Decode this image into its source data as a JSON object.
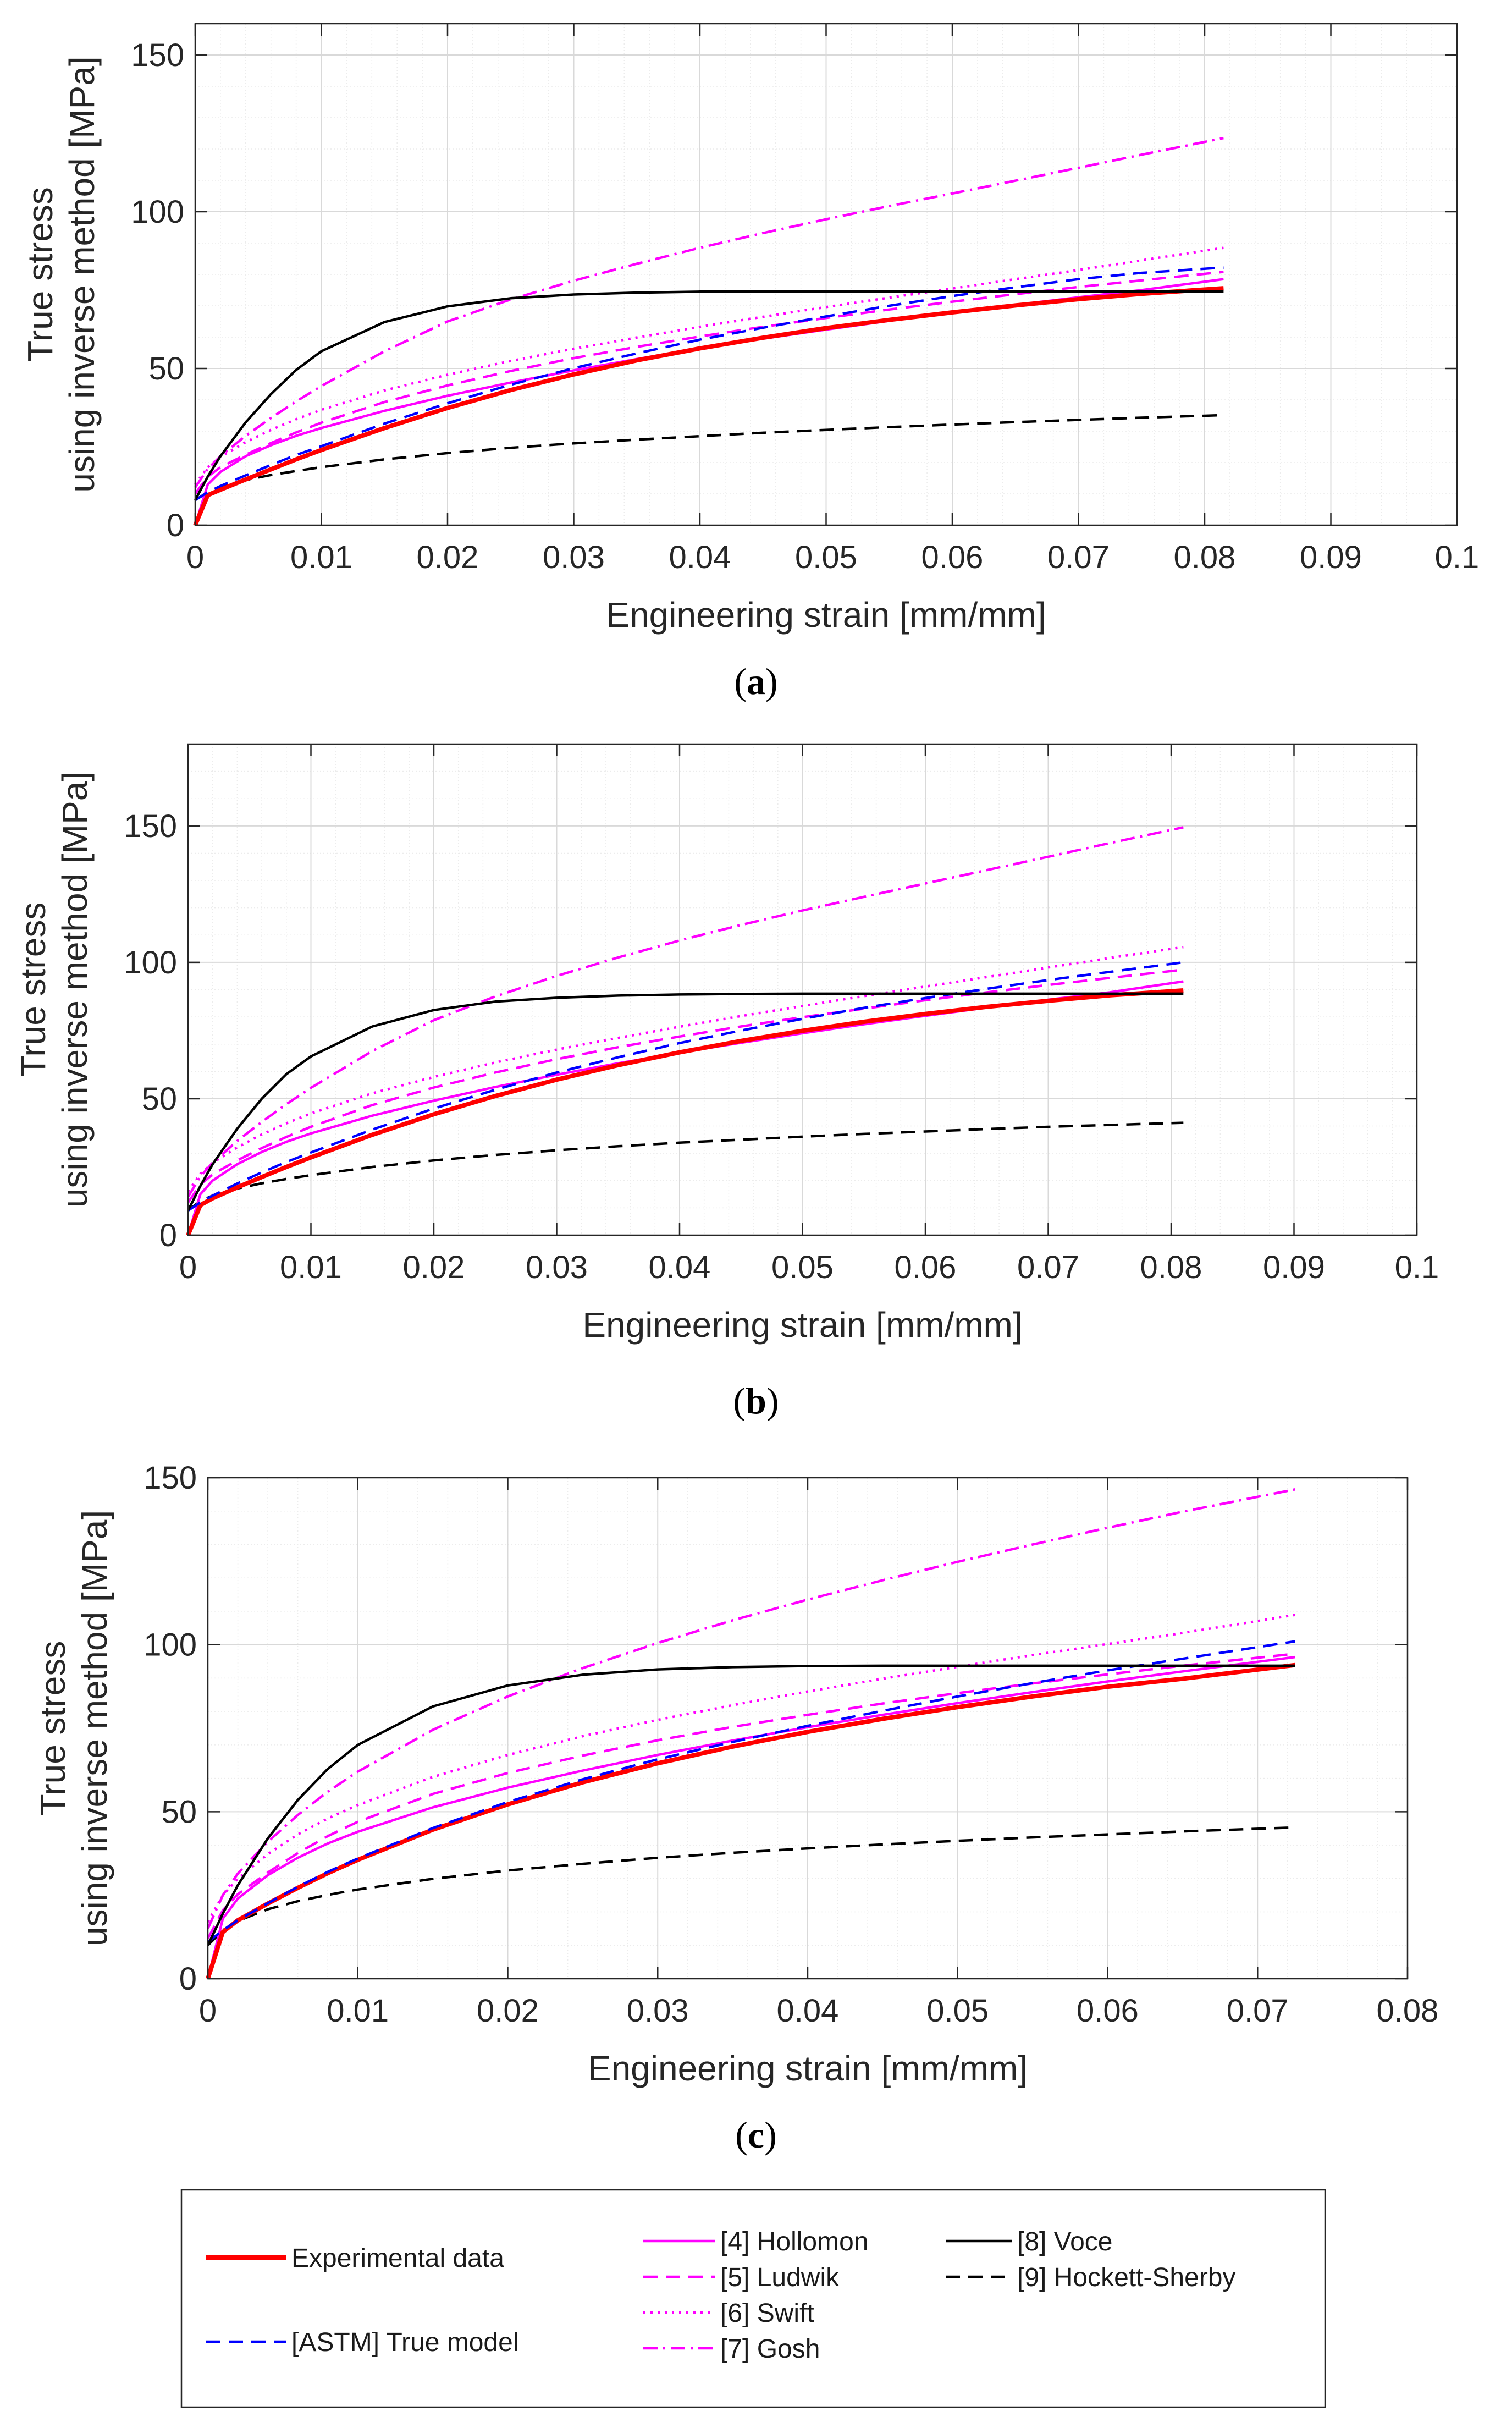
{
  "style": {
    "magenta": "#FF00FF",
    "red": "#FF0000",
    "blue": "#0000FF",
    "black": "#000000",
    "grid": "#d9d9d9",
    "minor_grid": "#ececec",
    "axis": "#262626"
  },
  "legend": {
    "items": [
      {
        "label": "Experimental data",
        "color": "#FF0000",
        "dash": "solid-thick"
      },
      {
        "label": "[ASTM] True model",
        "color": "#0000FF",
        "dash": "dashed"
      },
      {
        "label": "[4] Hollomon",
        "color": "#FF00FF",
        "dash": "solid"
      },
      {
        "label": "[5] Ludwik",
        "color": "#FF00FF",
        "dash": "dashed"
      },
      {
        "label": "[6] Swift",
        "color": "#FF00FF",
        "dash": "dotted"
      },
      {
        "label": "[7] Gosh",
        "color": "#FF00FF",
        "dash": "dashdot"
      },
      {
        "label": "[8] Voce",
        "color": "#000000",
        "dash": "solid"
      },
      {
        "label": "[9] Hockett-Sherby",
        "color": "#000000",
        "dash": "dashed"
      }
    ]
  },
  "chart_data": [
    {
      "type": "line",
      "caption": "a",
      "xlabel": "Engineering strain [mm/mm]",
      "ylabel_lines": [
        "True stress",
        "using inverse method [MPa]"
      ],
      "xlim": [
        0,
        0.1
      ],
      "ylim": [
        0,
        160
      ],
      "xticks": [
        0,
        0.01,
        0.02,
        0.03,
        0.04,
        0.05,
        0.06,
        0.07,
        0.08,
        0.09,
        0.1
      ],
      "xtick_labels": [
        "0",
        "0.01",
        "0.02",
        "0.03",
        "0.04",
        "0.05",
        "0.06",
        "0.07",
        "0.08",
        "0.09",
        "0.1"
      ],
      "yticks": [
        0,
        50,
        100,
        150
      ],
      "ytick_labels": [
        "0",
        "50",
        "100",
        "150"
      ],
      "x": [
        0,
        0.001,
        0.002,
        0.004,
        0.006,
        0.008,
        0.01,
        0.015,
        0.02,
        0.025,
        0.03,
        0.035,
        0.04,
        0.045,
        0.05,
        0.055,
        0.06,
        0.065,
        0.07,
        0.075,
        0.0815
      ],
      "series": [
        {
          "name": "Experimental data",
          "values": [
            0,
            9.6,
            11.3,
            14.6,
            17.8,
            21.0,
            24.0,
            31.0,
            37.4,
            43.1,
            48.1,
            52.6,
            56.4,
            59.8,
            62.9,
            65.5,
            67.9,
            70.1,
            72.1,
            73.8,
            75.6
          ]
        },
        {
          "name": "[ASTM] True model",
          "values": [
            8.0,
            10.5,
            12.5,
            15.9,
            19.2,
            22.4,
            25.2,
            32.4,
            38.9,
            44.8,
            50.1,
            54.8,
            59.2,
            63.0,
            66.6,
            70.0,
            73.1,
            75.9,
            78.5,
            80.5,
            82.2
          ]
        },
        {
          "name": "[4] Hollomon",
          "values": [
            0,
            13.0,
            17.0,
            22.0,
            25.5,
            28.5,
            31.0,
            36.5,
            41.3,
            45.5,
            49.4,
            53.0,
            56.4,
            59.5,
            62.4,
            65.2,
            67.8,
            70.3,
            72.7,
            75.0,
            78.5
          ]
        },
        {
          "name": "[5] Ludwik",
          "values": [
            10.0,
            15.5,
            18.5,
            22.5,
            26.2,
            29.6,
            32.7,
            39.3,
            44.6,
            49.2,
            53.3,
            56.9,
            60.2,
            63.3,
            66.1,
            68.8,
            71.3,
            73.7,
            76.0,
            78.1,
            80.8
          ]
        },
        {
          "name": "[6] Swift",
          "values": [
            13.0,
            18.5,
            21.8,
            26.5,
            30.4,
            33.8,
            36.8,
            43.0,
            48.0,
            52.4,
            56.3,
            59.9,
            63.3,
            66.5,
            69.6,
            72.6,
            75.5,
            78.5,
            81.4,
            84.5,
            88.5
          ]
        },
        {
          "name": "[7] Gosh",
          "values": [
            12.0,
            18.0,
            22.0,
            28.5,
            34.2,
            39.5,
            44.4,
            55.5,
            65.0,
            72.0,
            78.0,
            83.4,
            88.5,
            93.2,
            97.6,
            101.8,
            105.8,
            109.9,
            114.0,
            118.2,
            123.5
          ]
        },
        {
          "name": "[8] Voce",
          "values": [
            8.0,
            15.5,
            22.0,
            32.8,
            41.8,
            49.5,
            55.5,
            64.8,
            69.8,
            72.4,
            73.6,
            74.2,
            74.5,
            74.6,
            74.6,
            74.6,
            74.6,
            74.6,
            74.6,
            74.6,
            74.6
          ]
        },
        {
          "name": "[9] Hockett-Sherby",
          "values": [
            8.0,
            10.5,
            12.2,
            14.4,
            16.0,
            17.3,
            18.5,
            21.0,
            23.0,
            24.7,
            26.1,
            27.3,
            28.4,
            29.5,
            30.4,
            31.3,
            32.1,
            32.9,
            33.6,
            34.3,
            35.1
          ]
        }
      ]
    },
    {
      "type": "line",
      "caption": "b",
      "xlabel": "Engineering strain [mm/mm]",
      "ylabel_lines": [
        "True stress",
        "using inverse method [MPa]"
      ],
      "xlim": [
        0,
        0.1
      ],
      "ylim": [
        0,
        180
      ],
      "xticks": [
        0,
        0.01,
        0.02,
        0.03,
        0.04,
        0.05,
        0.06,
        0.07,
        0.08,
        0.09,
        0.1
      ],
      "xtick_labels": [
        "0",
        "0.01",
        "0.02",
        "0.03",
        "0.04",
        "0.05",
        "0.06",
        "0.07",
        "0.08",
        "0.09",
        "0.1"
      ],
      "yticks": [
        0,
        50,
        100,
        150
      ],
      "ytick_labels": [
        "0",
        "50",
        "100",
        "150"
      ],
      "x": [
        0,
        0.001,
        0.002,
        0.004,
        0.006,
        0.008,
        0.01,
        0.015,
        0.02,
        0.025,
        0.03,
        0.035,
        0.04,
        0.045,
        0.05,
        0.055,
        0.06,
        0.065,
        0.07,
        0.075,
        0.081
      ],
      "series": [
        {
          "name": "Experimental data",
          "values": [
            0,
            11.0,
            13.5,
            17.5,
            21.3,
            25.0,
            28.5,
            36.8,
            44.3,
            51.0,
            57.0,
            62.3,
            67.0,
            71.2,
            74.9,
            78.2,
            81.1,
            83.7,
            85.9,
            87.9,
            89.7
          ]
        },
        {
          "name": "[ASTM] True model",
          "values": [
            9.0,
            12.0,
            14.5,
            18.9,
            23.0,
            26.8,
            30.3,
            38.7,
            46.4,
            53.3,
            59.6,
            65.2,
            70.4,
            75.0,
            79.3,
            83.3,
            86.9,
            90.3,
            93.5,
            96.5,
            100.0
          ]
        },
        {
          "name": "[4] Hollomon",
          "values": [
            0,
            15.0,
            20.0,
            26.0,
            30.5,
            34.2,
            37.3,
            43.8,
            49.3,
            54.3,
            58.8,
            63.0,
            66.9,
            70.5,
            74.0,
            77.3,
            80.4,
            83.4,
            86.3,
            89.0,
            93.0
          ]
        },
        {
          "name": "[5] Ludwik",
          "values": [
            12.0,
            18.5,
            22.3,
            27.4,
            31.9,
            36.0,
            39.7,
            47.7,
            54.1,
            59.6,
            64.5,
            68.9,
            72.8,
            76.5,
            79.9,
            83.0,
            86.1,
            89.0,
            91.7,
            94.3,
            97.3
          ]
        },
        {
          "name": "[6] Swift",
          "values": [
            16.0,
            22.5,
            26.5,
            32.2,
            36.9,
            41.0,
            44.6,
            52.0,
            58.0,
            63.3,
            68.0,
            72.3,
            76.4,
            80.3,
            84.0,
            87.6,
            91.1,
            94.6,
            98.1,
            101.6,
            105.6
          ]
        },
        {
          "name": "[7] Gosh",
          "values": [
            14.0,
            21.5,
            26.5,
            34.5,
            41.5,
            48.0,
            54.0,
            67.5,
            78.8,
            87.5,
            95.0,
            101.8,
            108.0,
            113.7,
            119.0,
            124.0,
            128.9,
            133.8,
            138.7,
            143.7,
            149.5
          ]
        },
        {
          "name": "[8] Voce",
          "values": [
            9.0,
            18.0,
            26.0,
            39.0,
            50.0,
            59.0,
            65.5,
            76.5,
            82.5,
            85.6,
            87.0,
            87.8,
            88.2,
            88.4,
            88.5,
            88.5,
            88.5,
            88.5,
            88.5,
            88.5,
            88.5
          ]
        },
        {
          "name": "[9] Hockett-Sherby",
          "values": [
            9.0,
            12.5,
            14.5,
            17.1,
            19.0,
            20.6,
            22.0,
            25.0,
            27.4,
            29.4,
            31.1,
            32.6,
            33.9,
            35.0,
            36.1,
            37.1,
            38.0,
            38.9,
            39.7,
            40.4,
            41.2
          ]
        }
      ]
    },
    {
      "type": "line",
      "caption": "c",
      "xlabel": "Engineering strain [mm/mm]",
      "ylabel_lines": [
        "True stress",
        "using inverse method [MPa]"
      ],
      "xlim": [
        0,
        0.08
      ],
      "ylim": [
        0,
        150
      ],
      "xticks": [
        0,
        0.01,
        0.02,
        0.03,
        0.04,
        0.05,
        0.06,
        0.07,
        0.08
      ],
      "xtick_labels": [
        "0",
        "0.01",
        "0.02",
        "0.03",
        "0.04",
        "0.05",
        "0.06",
        "0.07",
        "0.08"
      ],
      "yticks": [
        0,
        50,
        100,
        150
      ],
      "ytick_labels": [
        "0",
        "50",
        "100",
        "150"
      ],
      "x": [
        0,
        0.001,
        0.002,
        0.004,
        0.006,
        0.008,
        0.01,
        0.015,
        0.02,
        0.025,
        0.03,
        0.035,
        0.04,
        0.045,
        0.05,
        0.055,
        0.06,
        0.065,
        0.0725
      ],
      "series": [
        {
          "name": "Experimental data",
          "values": [
            0,
            14.0,
            17.5,
            22.5,
            27.2,
            31.6,
            35.6,
            44.6,
            52.2,
            58.8,
            64.5,
            69.5,
            73.9,
            77.8,
            81.3,
            84.5,
            87.4,
            89.8,
            93.9
          ]
        },
        {
          "name": "[ASTM] True model",
          "values": [
            11.0,
            14.5,
            17.5,
            22.6,
            27.5,
            32.0,
            36.0,
            45.1,
            52.9,
            59.7,
            65.7,
            70.9,
            75.7,
            80.2,
            84.5,
            88.5,
            92.3,
            95.8,
            101.0
          ]
        },
        {
          "name": "[4] Hollomon",
          "values": [
            0,
            18.0,
            24.0,
            31.0,
            36.2,
            40.5,
            44.0,
            51.3,
            57.2,
            62.3,
            67.0,
            71.3,
            75.3,
            79.0,
            82.5,
            85.8,
            89.0,
            92.0,
            96.3
          ]
        },
        {
          "name": "[5] Ludwik",
          "values": [
            12.0,
            20.5,
            25.3,
            31.8,
            37.6,
            42.7,
            47.0,
            55.3,
            61.6,
            66.8,
            71.4,
            75.4,
            79.0,
            82.4,
            85.5,
            88.4,
            91.1,
            93.7,
            97.3
          ]
        },
        {
          "name": "[6] Swift",
          "values": [
            17.0,
            25.0,
            30.0,
            37.3,
            43.2,
            48.0,
            52.0,
            60.4,
            67.0,
            72.6,
            77.5,
            81.9,
            86.0,
            89.8,
            93.4,
            96.9,
            100.2,
            103.5,
            108.9
          ]
        },
        {
          "name": "[7] Gosh",
          "values": [
            15.0,
            25.0,
            31.5,
            41.0,
            49.0,
            56.0,
            62.0,
            74.5,
            84.5,
            93.0,
            100.5,
            107.3,
            113.5,
            119.3,
            124.8,
            130.0,
            135.0,
            139.8,
            146.5
          ]
        },
        {
          "name": "[8] Voce",
          "values": [
            10.0,
            19.5,
            28.0,
            42.0,
            53.5,
            62.8,
            70.0,
            81.5,
            87.8,
            91.0,
            92.6,
            93.3,
            93.6,
            93.7,
            93.7,
            93.7,
            93.7,
            93.7,
            93.7
          ]
        },
        {
          "name": "[9] Hockett-Sherby",
          "values": [
            10.0,
            14.5,
            17.3,
            20.8,
            23.2,
            25.1,
            26.7,
            29.9,
            32.4,
            34.4,
            36.2,
            37.7,
            39.0,
            40.2,
            41.3,
            42.3,
            43.2,
            44.1,
            45.3
          ]
        }
      ]
    }
  ]
}
